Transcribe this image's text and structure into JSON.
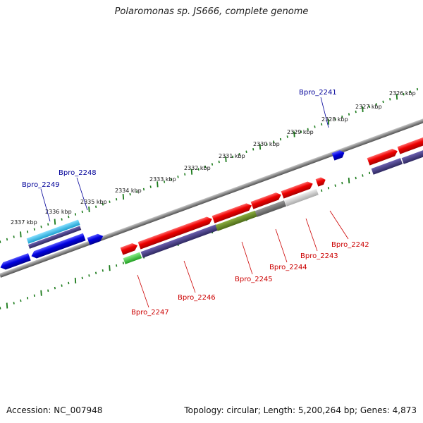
{
  "title": "Polaromonas sp. JS666, complete genome",
  "footer": {
    "accession": "Accession: NC_007948",
    "summary": "Topology: circular; Length: 5,200,264 bp; Genes: 4,873"
  },
  "colors": {
    "forward_gene": "#e00000",
    "reverse_gene": "#0000dd",
    "highlight_cyan": "#33bbee",
    "backbone": "#888888",
    "tick": "#1a7a1a",
    "top_label": "#000099",
    "bottom_label": "#cc0000",
    "band_purple": "#4a3f8a",
    "band_olive": "#6a8a2a",
    "band_green": "#44cc44",
    "band_gray": "#777777",
    "band_lightgray": "#cccccc"
  },
  "kbp_labels": [
    "2326 kbp",
    "2327 kbp",
    "2328 kbp",
    "2329 kbp",
    "2330 kbp",
    "2331 kbp",
    "2332 kbp",
    "2333 kbp",
    "2334 kbp",
    "2335 kbp",
    "2336 kbp",
    "2337 kbp"
  ],
  "top_gene_labels": [
    "Bpro_2241",
    "Bpro_2248",
    "Bpro_2249"
  ],
  "bottom_gene_labels": [
    "Bpro_2242",
    "Bpro_2243",
    "Bpro_2244",
    "Bpro_2245",
    "Bpro_2246",
    "Bpro_2247"
  ]
}
